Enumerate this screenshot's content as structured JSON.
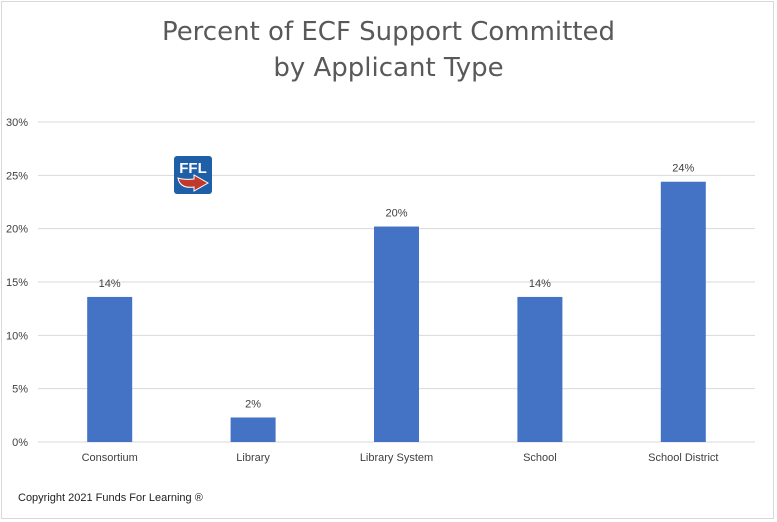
{
  "title_line1": "Percent of ECF Support Committed",
  "title_line2": "by Applicant Type",
  "copyright": "Copyright 2021 Funds For Learning ®",
  "logo_text": "FFL",
  "colors": {
    "bar": "#4472c4",
    "grid": "#d9d9d9",
    "text": "#404040",
    "logo_blue": "#1f5fa8",
    "logo_red": "#c0392b"
  },
  "chart_data": {
    "type": "bar",
    "title": "Percent of ECF Support Committed by Applicant Type",
    "xlabel": "",
    "ylabel": "",
    "categories": [
      "Consortium",
      "Library",
      "Library System",
      "School",
      "School District"
    ],
    "values": [
      13.6,
      2.3,
      20.2,
      13.6,
      24.4
    ],
    "data_labels": [
      "14%",
      "2%",
      "20%",
      "14%",
      "24%"
    ],
    "ylim": [
      0,
      30
    ],
    "yticks": [
      "0%",
      "5%",
      "10%",
      "15%",
      "20%",
      "25%",
      "30%"
    ],
    "grid": true,
    "legend": "none"
  }
}
